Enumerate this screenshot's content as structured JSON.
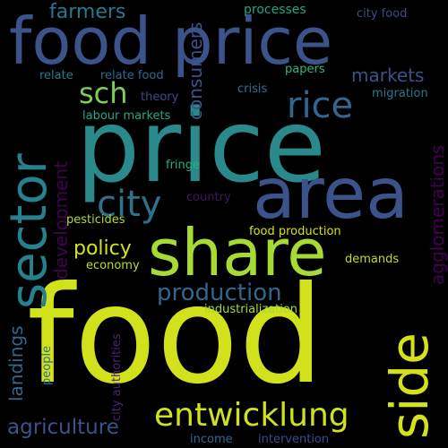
{
  "background": "#000000",
  "words": [
    {
      "text": "food",
      "color": "#d1e11c"
    },
    {
      "text": "price",
      "color": "#2a8a8b"
    },
    {
      "text": "food price",
      "color": "#3b528b"
    },
    {
      "text": "area",
      "color": "#3b528b"
    },
    {
      "text": "share",
      "color": "#a7db33"
    },
    {
      "text": "sector",
      "color": "#26818e"
    },
    {
      "text": "side",
      "color": "#d5e21a"
    },
    {
      "text": "entwicklung",
      "color": "#d1e11c"
    },
    {
      "text": "rice",
      "color": "#31668e"
    },
    {
      "text": "sch",
      "color": "#7ad151"
    },
    {
      "text": "city",
      "color": "#2c728e"
    },
    {
      "text": "production",
      "color": "#31668e"
    },
    {
      "text": "policy",
      "color": "#d5e21a"
    },
    {
      "text": "agriculture",
      "color": "#3b528b"
    },
    {
      "text": "farmers",
      "color": "#29798e"
    },
    {
      "text": "markets",
      "color": "#3b528b"
    },
    {
      "text": "consumers",
      "color": "#3b528b"
    },
    {
      "text": "development",
      "color": "#440154"
    },
    {
      "text": "agglomerations",
      "color": "#440154"
    },
    {
      "text": "landings",
      "color": "#31668e"
    },
    {
      "text": "processes",
      "color": "#20a486"
    },
    {
      "text": "city food",
      "color": "#3e4a89"
    },
    {
      "text": "papers",
      "color": "#34b679"
    },
    {
      "text": "relate",
      "color": "#2a788e"
    },
    {
      "text": "relate food",
      "color": "#31688e"
    },
    {
      "text": "crisis",
      "color": "#2c728e"
    },
    {
      "text": "migration",
      "color": "#2a788e"
    },
    {
      "text": "theory",
      "color": "#3e4989"
    },
    {
      "text": "labour markets",
      "color": "#22a884"
    },
    {
      "text": "fringe",
      "color": "#29af7f"
    },
    {
      "text": "country",
      "color": "#471365"
    },
    {
      "text": "pesticides",
      "color": "#addc30"
    },
    {
      "text": "food production",
      "color": "#d8e219"
    },
    {
      "text": "economy",
      "color": "#b5de2b"
    },
    {
      "text": "demands",
      "color": "#bddf26"
    },
    {
      "text": "industrialization",
      "color": "#a2da37"
    },
    {
      "text": "people",
      "color": "#2e6f8e"
    },
    {
      "text": "city authorities",
      "color": "#482475"
    },
    {
      "text": "income",
      "color": "#31688e"
    },
    {
      "text": "intervention",
      "color": "#3e4989"
    }
  ]
}
